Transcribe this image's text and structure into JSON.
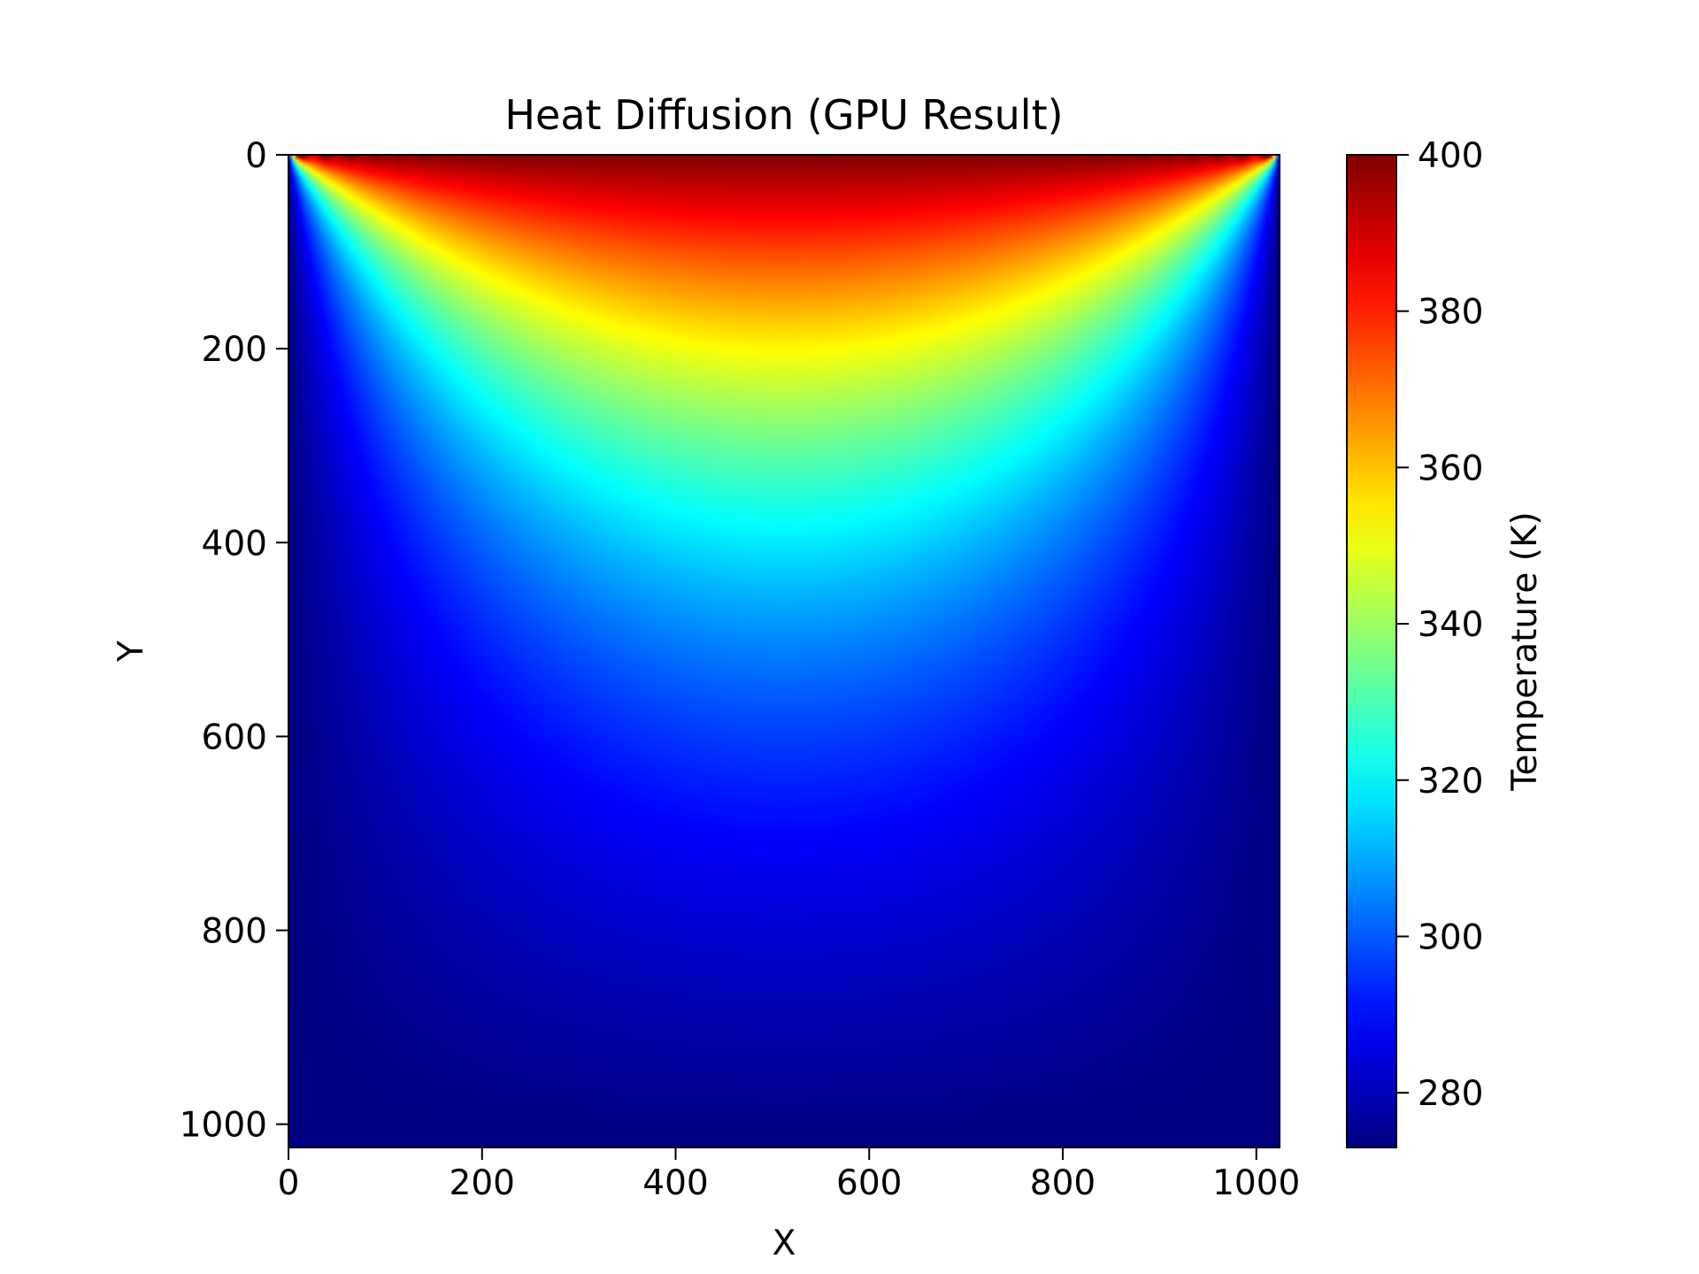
{
  "chart_data": {
    "type": "heatmap",
    "title": "Heat Diffusion (GPU Result)",
    "xlabel": "X",
    "ylabel": "Y",
    "xlim": [
      0,
      1024
    ],
    "ylim": [
      1024,
      0
    ],
    "y_axis_inverted": true,
    "x_ticks": [
      "0",
      "200",
      "400",
      "600",
      "800",
      "1000"
    ],
    "y_ticks": [
      "0",
      "200",
      "400",
      "600",
      "800",
      "1000"
    ],
    "colormap": "jet",
    "colorbar": {
      "label": "Temperature (K)",
      "range": [
        273,
        400
      ],
      "ticks": [
        "280",
        "300",
        "320",
        "340",
        "360",
        "380",
        "400"
      ]
    },
    "field": {
      "description_of_values": "temperature grid",
      "grid_size": [
        1024,
        1024
      ],
      "boundary_top": 400,
      "boundary_sides": 273,
      "boundary_bottom": 273,
      "interior_min": 273,
      "interior_max": 400
    }
  }
}
